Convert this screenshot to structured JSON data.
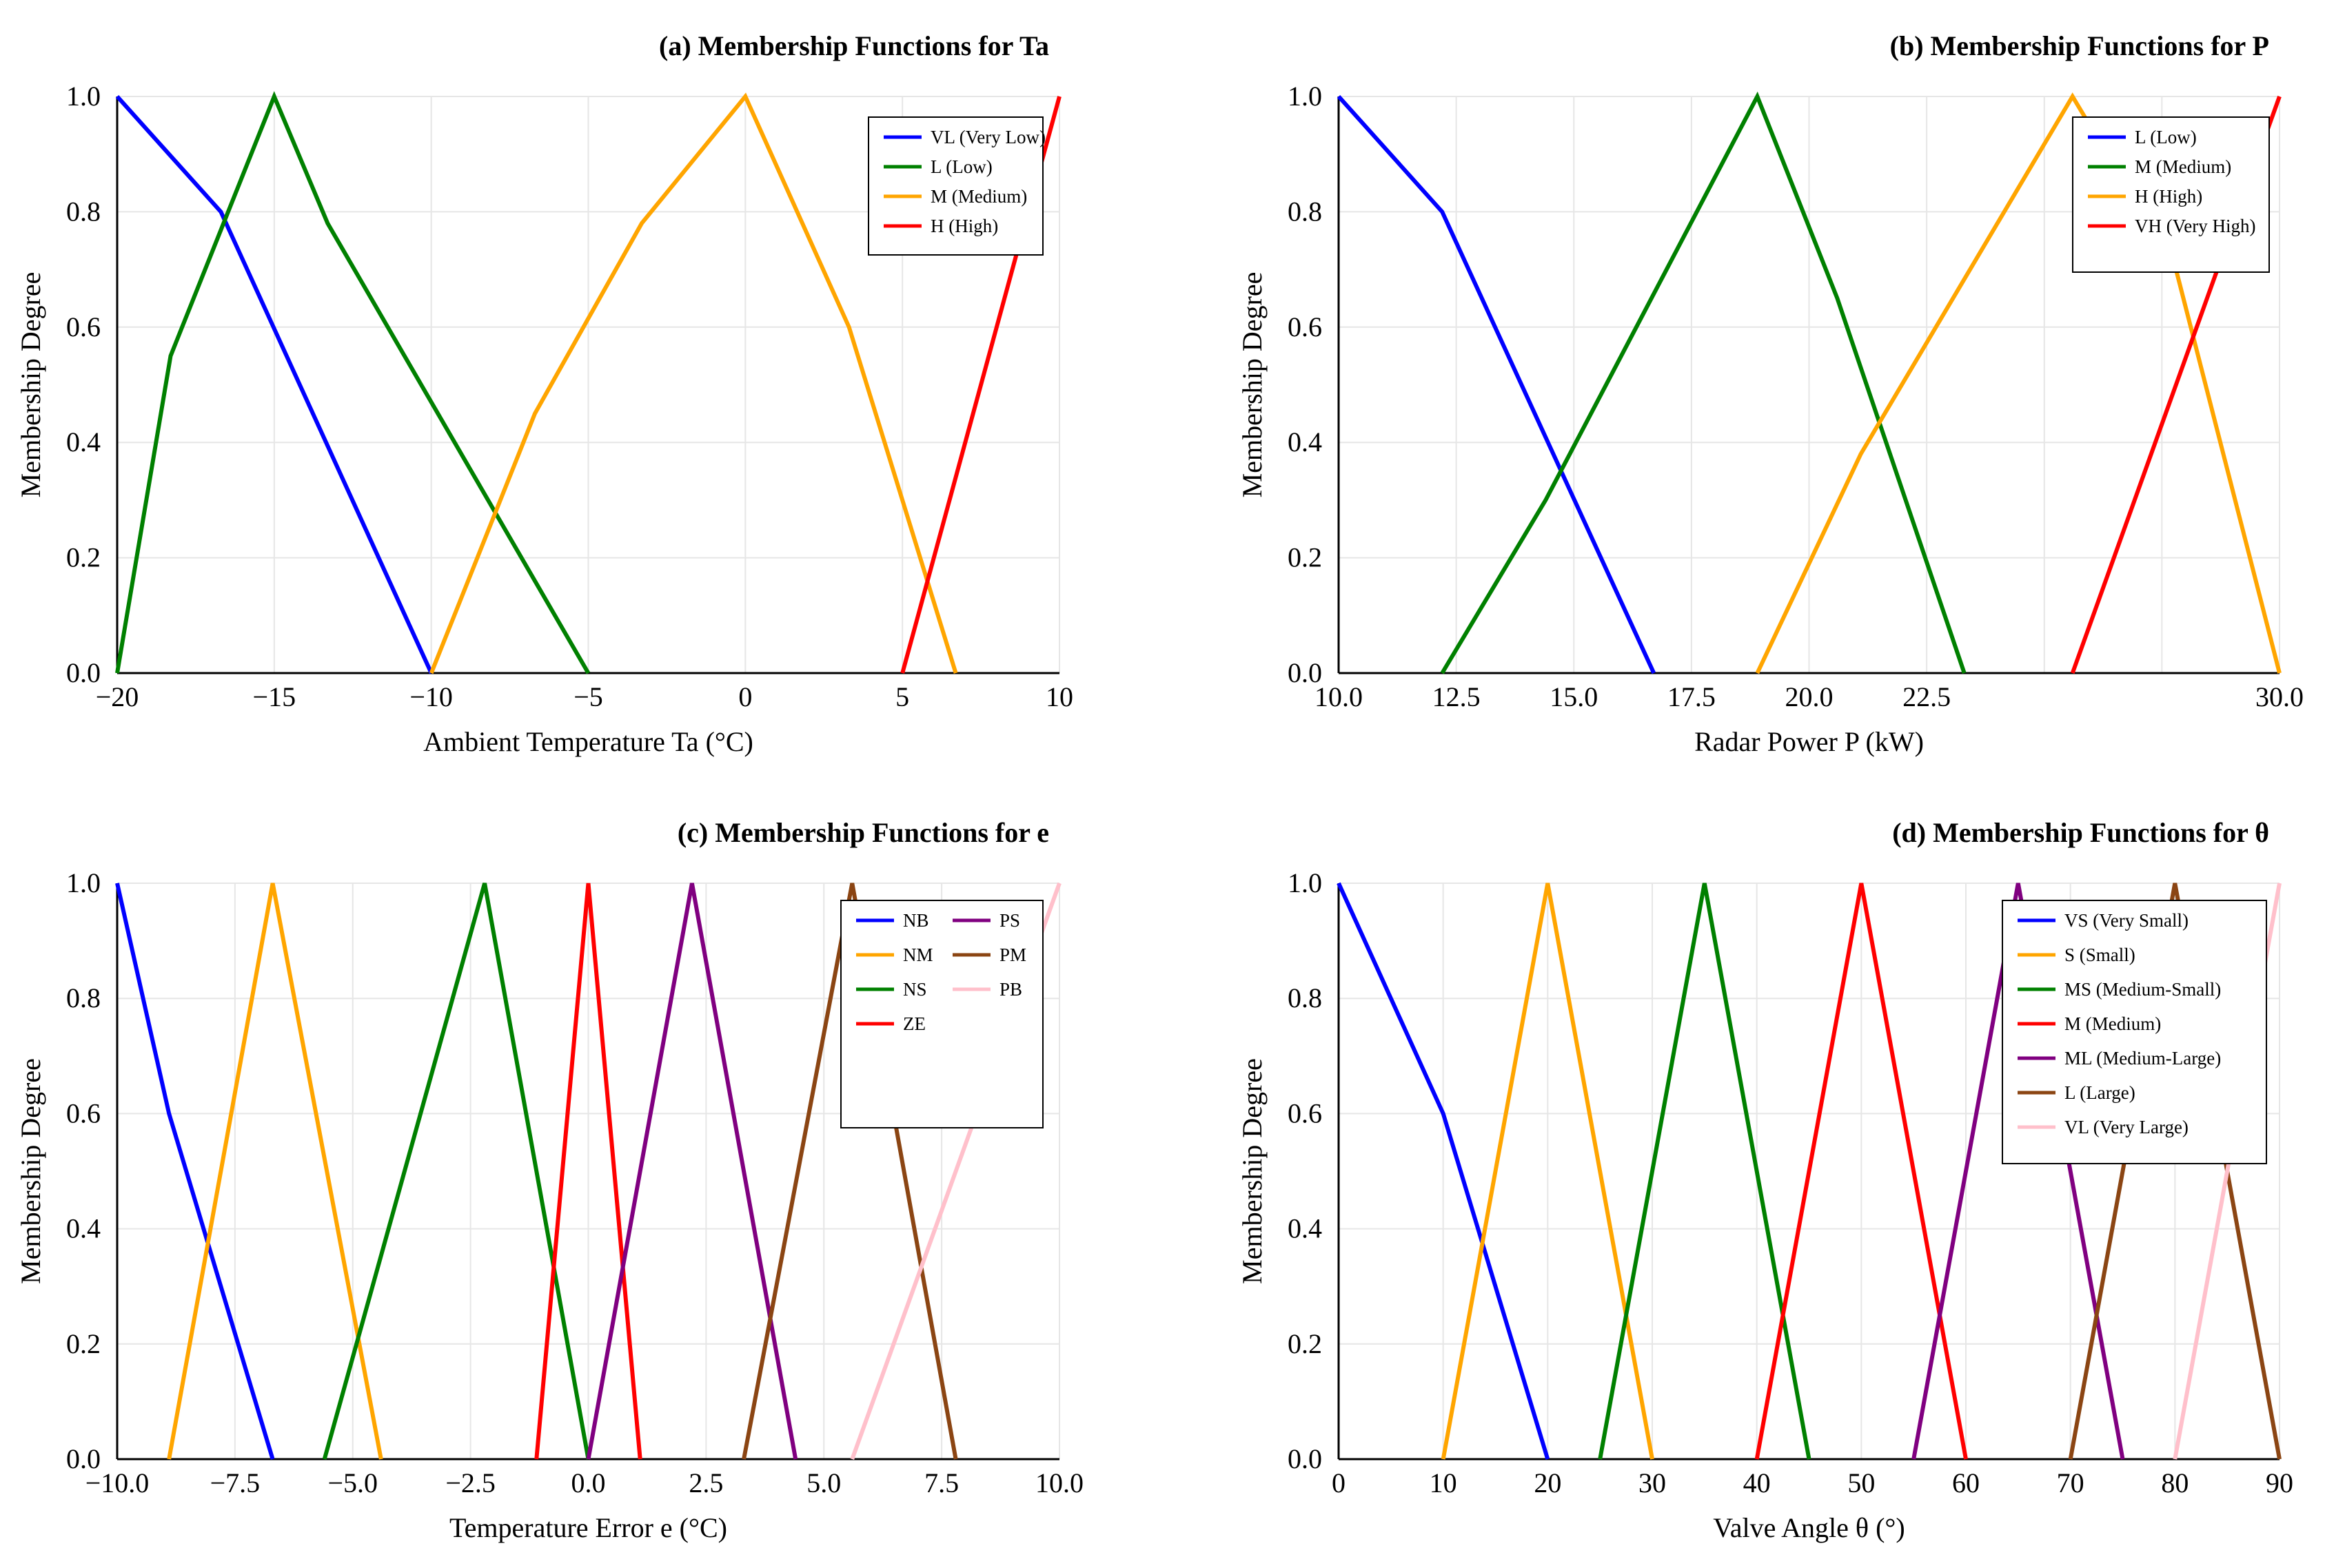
{
  "chart_data": [
    {
      "type": "line",
      "title": "(a) Membership Functions for Ta",
      "xlabel": "Ambient Temperature Ta (°C)",
      "ylabel": "Membership Degree",
      "xlim": [
        -20,
        10
      ],
      "ylim": [
        0,
        1
      ],
      "xticks": [
        -20,
        -15,
        -10,
        -5,
        0,
        5,
        10
      ],
      "xtick_labels": [
        "−20",
        "−15",
        "−10",
        "−5",
        "0",
        "5",
        "10"
      ],
      "ytick_labels": [
        "0.0",
        "0.2",
        "0.4",
        "0.6",
        "0.8",
        "1.0"
      ],
      "legend_position": "upper-right",
      "legend_columns": 1,
      "series": [
        {
          "name": "VL (Very Low)",
          "color": "#0000ff",
          "x": [
            -20,
            -16.7,
            -10
          ],
          "y": [
            1.0,
            0.8,
            0.0
          ]
        },
        {
          "name": "L (Low)",
          "color": "#008000",
          "x": [
            -20,
            -18.3,
            -15,
            -13.3,
            -5
          ],
          "y": [
            0.0,
            0.55,
            1.0,
            0.78,
            0.0
          ]
        },
        {
          "name": "M (Medium)",
          "color": "#ffa500",
          "x": [
            -10,
            -6.7,
            -3.3,
            0,
            3.3,
            6.7
          ],
          "y": [
            0.0,
            0.45,
            0.78,
            1.0,
            0.6,
            0.0
          ]
        },
        {
          "name": "H (High)",
          "color": "#ff0000",
          "x": [
            5,
            10
          ],
          "y": [
            0.0,
            1.0
          ]
        }
      ]
    },
    {
      "type": "line",
      "title": "(b) Membership Functions for P",
      "xlabel": "Radar Power P (kW)",
      "ylabel": "Membership Degree",
      "xlim": [
        10,
        30
      ],
      "ylim": [
        0,
        1
      ],
      "xticks": [
        10,
        12.5,
        15,
        17.5,
        20,
        22.5,
        25,
        27.5,
        30
      ],
      "xtick_labels": [
        "10.0",
        "12.5",
        "15.0",
        "17.5",
        "20.0",
        "22.5",
        "",
        "",
        "30.0"
      ],
      "ytick_labels": [
        "0.0",
        "0.2",
        "0.4",
        "0.6",
        "0.8",
        "1.0"
      ],
      "legend_position": "upper-right",
      "legend_columns": 1,
      "series": [
        {
          "name": "L (Low)",
          "color": "#0000ff",
          "x": [
            10,
            12.2,
            16.7
          ],
          "y": [
            1.0,
            0.8,
            0.0
          ]
        },
        {
          "name": "M (Medium)",
          "color": "#008000",
          "x": [
            12.2,
            14.4,
            18.9,
            20.6,
            23.3
          ],
          "y": [
            0.0,
            0.3,
            1.0,
            0.65,
            0.0
          ]
        },
        {
          "name": "H (High)",
          "color": "#ffa500",
          "x": [
            18.9,
            21.1,
            25.6,
            27.8,
            30.0
          ],
          "y": [
            0.0,
            0.38,
            1.0,
            0.7,
            0.0
          ]
        },
        {
          "name": "VH (Very High)",
          "color": "#ff0000",
          "x": [
            25.6,
            30.0
          ],
          "y": [
            0.0,
            1.0
          ]
        }
      ]
    },
    {
      "type": "line",
      "title": "(c) Membership Functions for e",
      "xlabel": "Temperature Error e (°C)",
      "ylabel": "Membership Degree",
      "xlim": [
        -10,
        10
      ],
      "ylim": [
        0,
        1
      ],
      "xticks": [
        -10,
        -7.5,
        -5,
        -2.5,
        0,
        2.5,
        5,
        7.5,
        10
      ],
      "xtick_labels": [
        "−10.0",
        "−7.5",
        "−5.0",
        "−2.5",
        "0.0",
        "2.5",
        "5.0",
        "7.5",
        "10.0"
      ],
      "ytick_labels": [
        "0.0",
        "0.2",
        "0.4",
        "0.6",
        "0.8",
        "1.0"
      ],
      "legend_position": "upper-right",
      "legend_columns": 2,
      "series": [
        {
          "name": "NB",
          "color": "#0000ff",
          "x": [
            -10,
            -8.9,
            -6.7
          ],
          "y": [
            1.0,
            0.6,
            0.0
          ]
        },
        {
          "name": "NM",
          "color": "#ffa500",
          "x": [
            -8.9,
            -6.7,
            -4.4
          ],
          "y": [
            0.0,
            1.0,
            0.0
          ]
        },
        {
          "name": "NS",
          "color": "#008000",
          "x": [
            -5.6,
            -2.2,
            0.0
          ],
          "y": [
            0.0,
            1.0,
            0.0
          ]
        },
        {
          "name": "ZE",
          "color": "#ff0000",
          "x": [
            -1.1,
            0.0,
            1.1
          ],
          "y": [
            0.0,
            1.0,
            0.0
          ]
        },
        {
          "name": "PS",
          "color": "#800080",
          "x": [
            0.0,
            2.2,
            4.4
          ],
          "y": [
            0.0,
            1.0,
            0.0
          ]
        },
        {
          "name": "PM",
          "color": "#8b4513",
          "x": [
            3.3,
            5.6,
            7.8
          ],
          "y": [
            0.0,
            1.0,
            0.0
          ]
        },
        {
          "name": "PB",
          "color": "#ffc0cb",
          "x": [
            5.6,
            10.0
          ],
          "y": [
            0.0,
            1.0
          ]
        }
      ]
    },
    {
      "type": "line",
      "title": "(d) Membership Functions for θ",
      "xlabel": "Valve Angle θ (°)",
      "ylabel": "Membership Degree",
      "xlim": [
        0,
        90
      ],
      "ylim": [
        0,
        1
      ],
      "xticks": [
        0,
        10,
        20,
        30,
        40,
        50,
        60,
        70,
        80,
        90
      ],
      "xtick_labels": [
        "0",
        "10",
        "20",
        "30",
        "40",
        "50",
        "60",
        "70",
        "80",
        "90"
      ],
      "ytick_labels": [
        "0.0",
        "0.2",
        "0.4",
        "0.6",
        "0.8",
        "1.0"
      ],
      "legend_position": "upper-right",
      "legend_columns": 1,
      "series": [
        {
          "name": "VS (Very Small)",
          "color": "#0000ff",
          "x": [
            0,
            10,
            20
          ],
          "y": [
            1.0,
            0.6,
            0.0
          ]
        },
        {
          "name": "S (Small)",
          "color": "#ffa500",
          "x": [
            10,
            20,
            30
          ],
          "y": [
            0.0,
            1.0,
            0.0
          ]
        },
        {
          "name": "MS (Medium-Small)",
          "color": "#008000",
          "x": [
            25,
            35,
            45
          ],
          "y": [
            0.0,
            1.0,
            0.0
          ]
        },
        {
          "name": "M (Medium)",
          "color": "#ff0000",
          "x": [
            40,
            50,
            60
          ],
          "y": [
            0.0,
            1.0,
            0.0
          ]
        },
        {
          "name": "ML (Medium-Large)",
          "color": "#800080",
          "x": [
            55,
            65,
            75
          ],
          "y": [
            0.0,
            1.0,
            0.0
          ]
        },
        {
          "name": "L (Large)",
          "color": "#8b4513",
          "x": [
            70,
            80,
            90
          ],
          "y": [
            0.0,
            1.0,
            0.0
          ]
        },
        {
          "name": "VL (Very Large)",
          "color": "#ffc0cb",
          "x": [
            80,
            90
          ],
          "y": [
            0.0,
            1.0
          ]
        }
      ]
    }
  ]
}
